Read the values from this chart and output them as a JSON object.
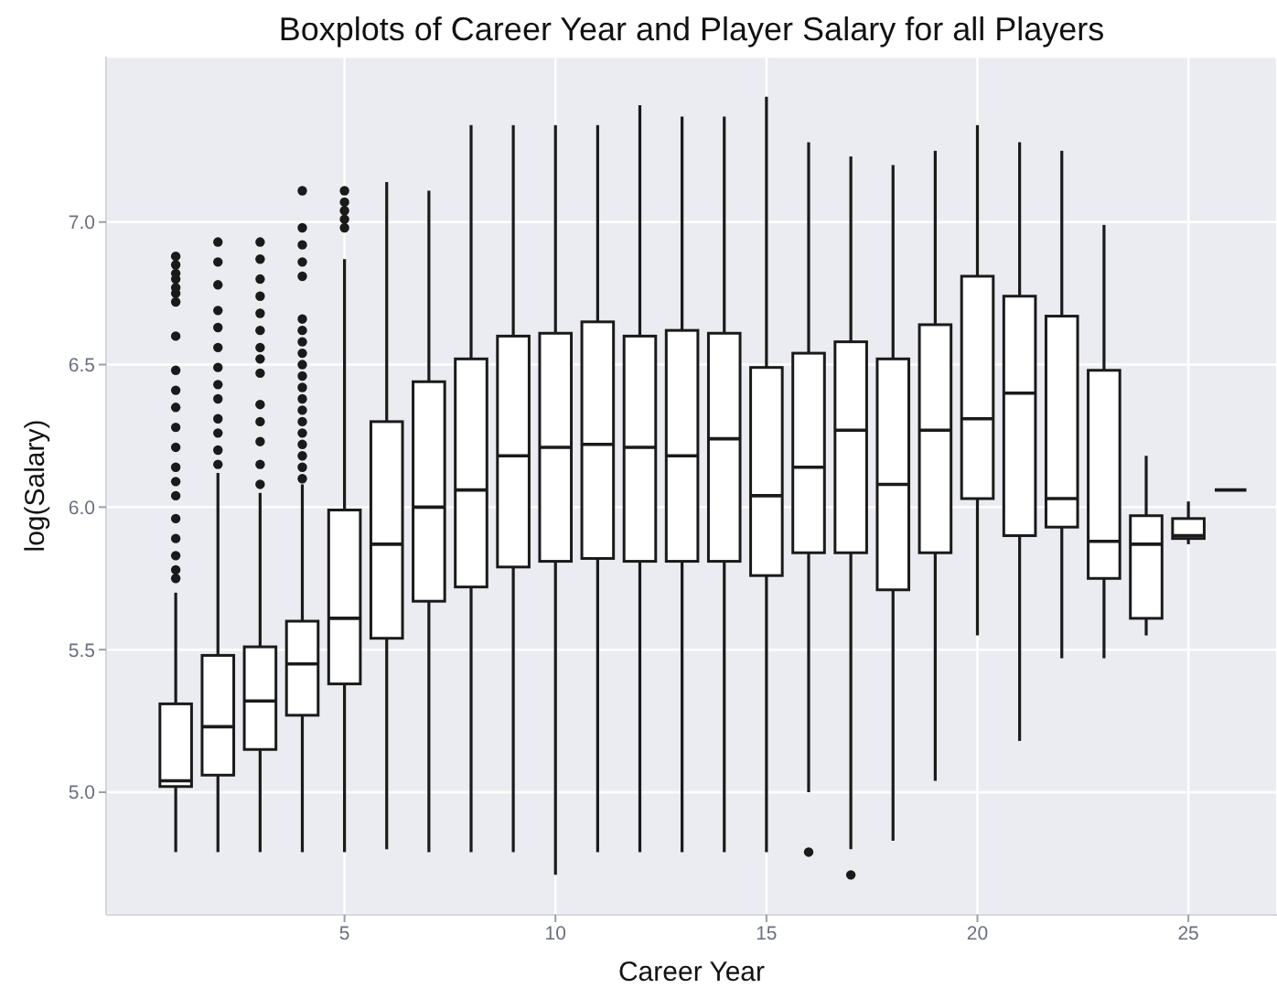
{
  "chart_data": {
    "type": "box",
    "title": "Boxplots of Career Year and Player Salary for all Players",
    "xlabel": "Career Year",
    "ylabel": "log(Salary)",
    "x": [
      1,
      2,
      3,
      4,
      5,
      6,
      7,
      8,
      9,
      10,
      11,
      12,
      13,
      14,
      15,
      16,
      17,
      18,
      19,
      20,
      21,
      22,
      23,
      24,
      25,
      26
    ],
    "boxes": [
      {
        "low": 4.79,
        "q1": 5.02,
        "median": 5.04,
        "q3": 5.31,
        "high": 5.7,
        "outliers": [
          5.75,
          5.78,
          5.83,
          5.89,
          5.96,
          6.04,
          6.09,
          6.14,
          6.21,
          6.28,
          6.35,
          6.41,
          6.48,
          6.6,
          6.72,
          6.75,
          6.77,
          6.8,
          6.82,
          6.85,
          6.88
        ]
      },
      {
        "low": 4.79,
        "q1": 5.06,
        "median": 5.23,
        "q3": 5.48,
        "high": 6.12,
        "outliers": [
          6.15,
          6.2,
          6.26,
          6.31,
          6.38,
          6.43,
          6.49,
          6.56,
          6.63,
          6.69,
          6.78,
          6.86,
          6.93
        ]
      },
      {
        "low": 4.79,
        "q1": 5.15,
        "median": 5.32,
        "q3": 5.51,
        "high": 6.05,
        "outliers": [
          6.08,
          6.15,
          6.23,
          6.3,
          6.36,
          6.47,
          6.52,
          6.56,
          6.62,
          6.68,
          6.74,
          6.8,
          6.87,
          6.93
        ]
      },
      {
        "low": 4.79,
        "q1": 5.27,
        "median": 5.45,
        "q3": 5.6,
        "high": 6.08,
        "outliers": [
          6.1,
          6.14,
          6.18,
          6.22,
          6.26,
          6.3,
          6.34,
          6.38,
          6.42,
          6.46,
          6.5,
          6.54,
          6.58,
          6.62,
          6.66,
          6.81,
          6.86,
          6.92,
          6.98,
          7.11
        ]
      },
      {
        "low": 4.79,
        "q1": 5.38,
        "median": 5.61,
        "q3": 5.99,
        "high": 6.87,
        "outliers": [
          6.98,
          7.01,
          7.04,
          7.07,
          7.11
        ]
      },
      {
        "low": 4.8,
        "q1": 5.54,
        "median": 5.87,
        "q3": 6.3,
        "high": 7.14
      },
      {
        "low": 4.79,
        "q1": 5.67,
        "median": 6.0,
        "q3": 6.44,
        "high": 7.11
      },
      {
        "low": 4.79,
        "q1": 5.72,
        "median": 6.06,
        "q3": 6.52,
        "high": 7.34
      },
      {
        "low": 4.79,
        "q1": 5.79,
        "median": 6.18,
        "q3": 6.6,
        "high": 7.34
      },
      {
        "low": 4.71,
        "q1": 5.81,
        "median": 6.21,
        "q3": 6.61,
        "high": 7.34
      },
      {
        "low": 4.79,
        "q1": 5.82,
        "median": 6.22,
        "q3": 6.65,
        "high": 7.34
      },
      {
        "low": 4.79,
        "q1": 5.81,
        "median": 6.21,
        "q3": 6.6,
        "high": 7.41
      },
      {
        "low": 4.79,
        "q1": 5.81,
        "median": 6.18,
        "q3": 6.62,
        "high": 7.37
      },
      {
        "low": 4.79,
        "q1": 5.81,
        "median": 6.24,
        "q3": 6.61,
        "high": 7.37
      },
      {
        "low": 4.79,
        "q1": 5.76,
        "median": 6.04,
        "q3": 6.49,
        "high": 7.44
      },
      {
        "low": 5.0,
        "q1": 5.84,
        "median": 6.14,
        "q3": 6.54,
        "high": 7.28,
        "outliers": [
          4.79
        ]
      },
      {
        "low": 4.8,
        "q1": 5.84,
        "median": 6.27,
        "q3": 6.58,
        "high": 7.23,
        "outliers": [
          4.71
        ]
      },
      {
        "low": 4.83,
        "q1": 5.71,
        "median": 6.08,
        "q3": 6.52,
        "high": 7.2
      },
      {
        "low": 5.04,
        "q1": 5.84,
        "median": 6.27,
        "q3": 6.64,
        "high": 7.25
      },
      {
        "low": 5.55,
        "q1": 6.03,
        "median": 6.31,
        "q3": 6.81,
        "high": 7.34
      },
      {
        "low": 5.18,
        "q1": 5.9,
        "median": 6.4,
        "q3": 6.74,
        "high": 7.28
      },
      {
        "low": 5.47,
        "q1": 5.93,
        "median": 6.03,
        "q3": 6.67,
        "high": 7.25
      },
      {
        "low": 5.47,
        "q1": 5.75,
        "median": 5.88,
        "q3": 6.48,
        "high": 6.99
      },
      {
        "low": 5.55,
        "q1": 5.61,
        "median": 5.87,
        "q3": 5.97,
        "high": 6.18
      },
      {
        "low": 5.87,
        "q1": 5.89,
        "median": 5.9,
        "q3": 5.96,
        "high": 6.02
      },
      {
        "low": 6.06,
        "q1": 6.06,
        "median": 6.06,
        "q3": 6.06,
        "high": 6.06
      }
    ],
    "color": "#1a1a1a",
    "xlim": [
      -0.65,
      27.1
    ],
    "xticks": [
      5,
      10,
      15,
      20,
      25
    ],
    "ylim": [
      4.57,
      7.58
    ],
    "yticks": [
      {
        "value": 5,
        "label": "5.0"
      },
      5.5,
      {
        "value": 6,
        "label": "6.0"
      },
      6.5,
      {
        "value": 7,
        "label": "7.0"
      }
    ],
    "grid": true
  }
}
